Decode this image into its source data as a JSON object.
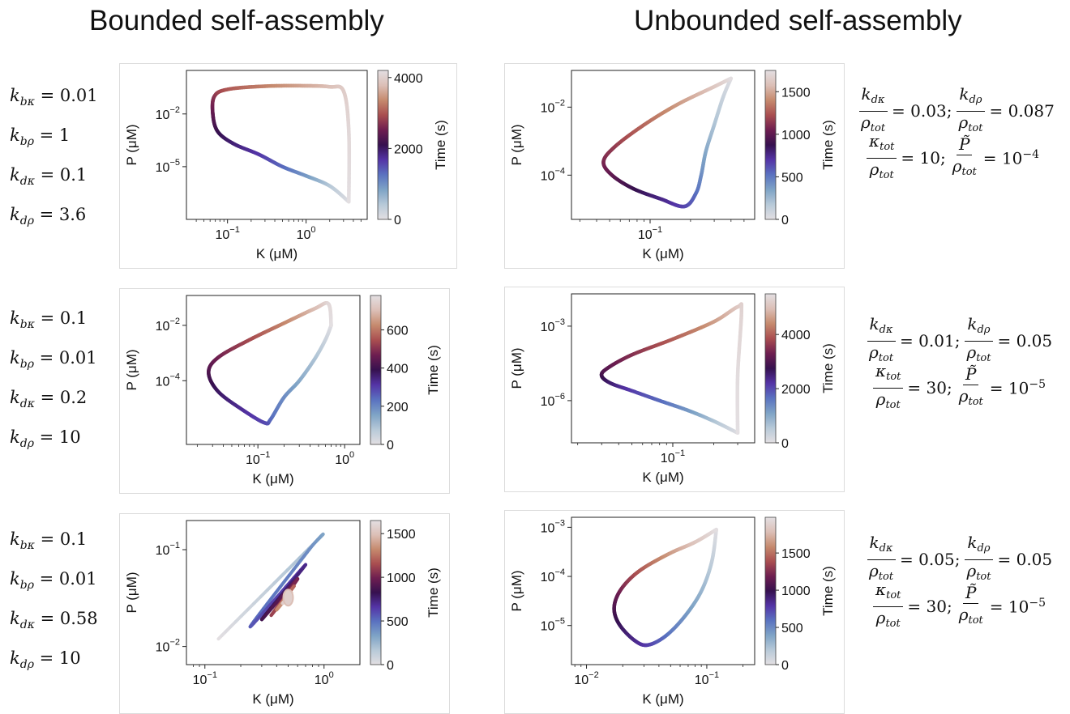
{
  "headings": {
    "left": "Bounded self-assembly",
    "right": "Unbounded self-assembly"
  },
  "left_params": [
    [
      {
        "sym": "k",
        "sub": "bκ",
        "val": "= 0.01"
      },
      {
        "sym": "k",
        "sub": "bρ",
        "val": "= 1"
      },
      {
        "sym": "k",
        "sub": "dκ",
        "val": "= 0.1"
      },
      {
        "sym": "k",
        "sub": "dρ",
        "val": "= 3.6"
      }
    ],
    [
      {
        "sym": "k",
        "sub": "bκ",
        "val": "= 0.1"
      },
      {
        "sym": "k",
        "sub": "bρ",
        "val": "= 0.01"
      },
      {
        "sym": "k",
        "sub": "dκ",
        "val": "= 0.2"
      },
      {
        "sym": "k",
        "sub": "dρ",
        "val": "= 10"
      }
    ],
    [
      {
        "sym": "k",
        "sub": "bκ",
        "val": "= 0.1"
      },
      {
        "sym": "k",
        "sub": "bρ",
        "val": "= 0.01"
      },
      {
        "sym": "k",
        "sub": "dκ",
        "val": "= 0.58"
      },
      {
        "sym": "k",
        "sub": "dρ",
        "val": "= 10"
      }
    ]
  ],
  "right_params": [
    {
      "kdk": "= 0.03;",
      "kdr": "= 0.087",
      "ktot": "= 10;",
      "ptilde": "= 10",
      "ptilde_exp": "−4"
    },
    {
      "kdk": "= 0.01;",
      "kdr": "= 0.05",
      "ktot": "= 30;",
      "ptilde": "= 10",
      "ptilde_exp": "−5"
    },
    {
      "kdk": "= 0.05;",
      "kdr": "= 0.05",
      "ktot": "= 30;",
      "ptilde": "= 10",
      "ptilde_exp": "−5"
    }
  ],
  "symbols": {
    "k_dkappa_num": "k",
    "k_dkappa_sub": "dκ",
    "k_drho_num": "k",
    "k_drho_sub": "dρ",
    "rho": "ρ",
    "rho_sub": "tot",
    "kappa": "κ",
    "kappa_sub": "tot",
    "ptilde": "P̃"
  },
  "colors": {
    "cmap": [
      "#e3dfe2",
      "#b7c9d8",
      "#7ea3c6",
      "#5a72c0",
      "#5434a6",
      "#36114f",
      "#6e1e50",
      "#a94e50",
      "#c68a6e",
      "#dcbfb6",
      "#e3dfe2"
    ]
  },
  "chart_data": [
    {
      "id": "bounded-1",
      "type": "line",
      "xlabel": "K (μM)",
      "ylabel": "P (μM)",
      "colorbar_label": "Time (s)",
      "xscale": "log",
      "yscale": "log",
      "xlim": [
        0.03,
        6
      ],
      "ylim": [
        1e-08,
        3
      ],
      "xticks": [
        {
          "v": 0.1,
          "b": "10",
          "e": "−1"
        },
        {
          "v": 1,
          "b": "10",
          "e": "0"
        }
      ],
      "yticks": [
        {
          "v": 0.01,
          "b": "10",
          "e": "−2"
        },
        {
          "v": 1e-05,
          "b": "10",
          "e": "−5"
        }
      ],
      "cbar_ticks": [
        {
          "v": 0,
          "t": "0"
        },
        {
          "v": 2000,
          "t": "2000"
        },
        {
          "v": 4000,
          "t": "4000"
        }
      ],
      "tmax": 4200,
      "x": [
        3.5,
        2.0,
        1.0,
        0.5,
        0.25,
        0.12,
        0.075,
        0.065,
        0.068,
        0.1,
        0.3,
        1.0,
        2.0,
        3.0,
        3.5,
        3.5
      ],
      "y": [
        1e-07,
        8e-07,
        3e-06,
        1e-05,
        5e-05,
        0.0002,
        0.001,
        0.01,
        0.1,
        0.25,
        0.38,
        0.4,
        0.35,
        0.2,
        0.001,
        1e-07
      ],
      "t": [
        0,
        400,
        900,
        1300,
        1650,
        1900,
        2100,
        2400,
        2700,
        3000,
        3300,
        3600,
        3800,
        3950,
        4100,
        4200
      ]
    },
    {
      "id": "bounded-2",
      "type": "line",
      "xlabel": "K (μM)",
      "ylabel": "P (μM)",
      "colorbar_label": "Time (s)",
      "xscale": "log",
      "yscale": "log",
      "xlim": [
        0.015,
        1.5
      ],
      "ylim": [
        5e-07,
        0.12
      ],
      "xticks": [
        {
          "v": 0.1,
          "b": "10",
          "e": "−1"
        },
        {
          "v": 1,
          "b": "10",
          "e": "0"
        }
      ],
      "yticks": [
        {
          "v": 0.01,
          "b": "10",
          "e": "−2"
        },
        {
          "v": 0.0001,
          "b": "10",
          "e": "−4"
        }
      ],
      "cbar_ticks": [
        {
          "v": 0,
          "t": "0"
        },
        {
          "v": 200,
          "t": "200"
        },
        {
          "v": 400,
          "t": "400"
        },
        {
          "v": 600,
          "t": "600"
        }
      ],
      "tmax": 780,
      "x": [
        0.7,
        0.6,
        0.45,
        0.3,
        0.2,
        0.14,
        0.12,
        0.07,
        0.035,
        0.027,
        0.035,
        0.08,
        0.2,
        0.45,
        0.65,
        0.7
      ],
      "y": [
        0.01,
        0.003,
        0.0006,
        0.0001,
        2.5e-05,
        4e-06,
        3e-06,
        8e-06,
        4e-05,
        0.0002,
        0.0007,
        0.003,
        0.012,
        0.04,
        0.06,
        0.01
      ],
      "t": [
        0,
        40,
        90,
        140,
        190,
        240,
        280,
        320,
        370,
        420,
        470,
        540,
        620,
        700,
        760,
        780
      ]
    },
    {
      "id": "bounded-3",
      "type": "line",
      "xlabel": "K (μM)",
      "ylabel": "P (μM)",
      "colorbar_label": "Time (s)",
      "xscale": "log",
      "yscale": "log",
      "xlim": [
        0.07,
        2
      ],
      "ylim": [
        0.0065,
        0.2
      ],
      "xticks": [
        {
          "v": 0.1,
          "b": "10",
          "e": "−1"
        },
        {
          "v": 1,
          "b": "10",
          "e": "0"
        }
      ],
      "yticks": [
        {
          "v": 0.1,
          "b": "10",
          "e": "−1"
        },
        {
          "v": 0.01,
          "b": "10",
          "e": "−2"
        }
      ],
      "cbar_ticks": [
        {
          "v": 0,
          "t": "0"
        },
        {
          "v": 500,
          "t": "500"
        },
        {
          "v": 1000,
          "t": "1000"
        },
        {
          "v": 1500,
          "t": "1500"
        }
      ],
      "tmax": 1650,
      "spiral": true,
      "x": [
        0.13,
        0.85,
        0.75,
        0.24,
        0.7,
        0.3,
        0.6,
        0.36,
        0.56,
        0.4,
        0.53,
        0.45,
        0.5
      ],
      "y": [
        0.012,
        0.12,
        0.1,
        0.016,
        0.07,
        0.019,
        0.05,
        0.021,
        0.042,
        0.024,
        0.036,
        0.028,
        0.032
      ],
      "t": [
        0,
        250,
        400,
        550,
        700,
        850,
        1000,
        1100,
        1200,
        1300,
        1400,
        1520,
        1650
      ]
    },
    {
      "id": "unbounded-1",
      "type": "line",
      "xlabel": "K (μM)",
      "ylabel": "P (μM)",
      "colorbar_label": "Time (s)",
      "xscale": "log",
      "yscale": "log",
      "xlim": [
        0.026,
        0.6
      ],
      "ylim": [
        5e-06,
        0.12
      ],
      "xticks": [
        {
          "v": 0.1,
          "b": "10",
          "e": "−1"
        }
      ],
      "yticks": [
        {
          "v": 0.01,
          "b": "10",
          "e": "−2"
        },
        {
          "v": 0.0001,
          "b": "10",
          "e": "−4"
        }
      ],
      "cbar_ticks": [
        {
          "v": 0,
          "t": "0"
        },
        {
          "v": 500,
          "t": "500"
        },
        {
          "v": 1000,
          "t": "1000"
        },
        {
          "v": 1500,
          "t": "1500"
        }
      ],
      "tmax": 1750,
      "x": [
        0.4,
        0.35,
        0.3,
        0.26,
        0.24,
        0.22,
        0.18,
        0.12,
        0.075,
        0.052,
        0.045,
        0.055,
        0.09,
        0.16,
        0.3,
        0.4
      ],
      "y": [
        0.07,
        0.02,
        0.003,
        0.0005,
        0.0001,
        3e-05,
        1.2e-05,
        2e-05,
        4e-05,
        0.0001,
        0.00025,
        0.0007,
        0.003,
        0.012,
        0.04,
        0.07
      ],
      "t": [
        0,
        100,
        200,
        320,
        420,
        520,
        640,
        760,
        880,
        1000,
        1080,
        1160,
        1300,
        1450,
        1620,
        1750
      ]
    },
    {
      "id": "unbounded-2",
      "type": "line",
      "xlabel": "K (μM)",
      "ylabel": "P (μM)",
      "colorbar_label": "Time (s)",
      "xscale": "log",
      "yscale": "log",
      "xlim": [
        0.018,
        0.4
      ],
      "ylim": [
        2e-08,
        0.02
      ],
      "xticks": [
        {
          "v": 0.1,
          "b": "10",
          "e": "−1"
        }
      ],
      "yticks": [
        {
          "v": 0.001,
          "b": "10",
          "e": "−3"
        },
        {
          "v": 1e-06,
          "b": "10",
          "e": "−6"
        }
      ],
      "cbar_ticks": [
        {
          "v": 0,
          "t": "0"
        },
        {
          "v": 2000,
          "t": "2000"
        },
        {
          "v": 4000,
          "t": "4000"
        }
      ],
      "tmax": 5500,
      "x": [
        0.3,
        0.2,
        0.13,
        0.08,
        0.05,
        0.035,
        0.03,
        0.033,
        0.05,
        0.1,
        0.2,
        0.3,
        0.32,
        0.3,
        0.3
      ],
      "y": [
        5e-08,
        1.5e-07,
        4e-07,
        1e-06,
        2.5e-06,
        5e-06,
        1e-05,
        2e-05,
        7e-05,
        0.0003,
        0.0015,
        0.006,
        0.004,
        1e-05,
        5e-08
      ],
      "t": [
        0,
        600,
        1200,
        1700,
        2100,
        2500,
        2800,
        3100,
        3500,
        4000,
        4600,
        5100,
        5300,
        5450,
        5500
      ]
    },
    {
      "id": "unbounded-3",
      "type": "line",
      "xlabel": "K (μM)",
      "ylabel": "P (μM)",
      "colorbar_label": "Time (s)",
      "xscale": "log",
      "yscale": "log",
      "xlim": [
        0.0075,
        0.25
      ],
      "ylim": [
        1.6e-06,
        0.0016
      ],
      "xticks": [
        {
          "v": 0.01,
          "b": "10",
          "e": "−2"
        },
        {
          "v": 0.1,
          "b": "10",
          "e": "−1"
        }
      ],
      "yticks": [
        {
          "v": 0.001,
          "b": "10",
          "e": "−3"
        },
        {
          "v": 0.0001,
          "b": "10",
          "e": "−4"
        },
        {
          "v": 1e-05,
          "b": "10",
          "e": "−5"
        }
      ],
      "cbar_ticks": [
        {
          "v": 0,
          "t": "0"
        },
        {
          "v": 500,
          "t": "500"
        },
        {
          "v": 1000,
          "t": "1000"
        },
        {
          "v": 1500,
          "t": "1500"
        }
      ],
      "tmax": 1980,
      "x": [
        0.12,
        0.11,
        0.09,
        0.065,
        0.045,
        0.032,
        0.025,
        0.019,
        0.017,
        0.018,
        0.022,
        0.03,
        0.05,
        0.08,
        0.12
      ],
      "y": [
        0.0009,
        0.0002,
        5e-05,
        1.5e-05,
        6e-06,
        4e-06,
        5e-06,
        1e-05,
        2e-05,
        4e-05,
        8e-05,
        0.00015,
        0.0003,
        0.0005,
        0.0009
      ],
      "t": [
        0,
        150,
        300,
        450,
        600,
        750,
        850,
        950,
        1050,
        1150,
        1300,
        1450,
        1650,
        1820,
        1980
      ]
    }
  ]
}
